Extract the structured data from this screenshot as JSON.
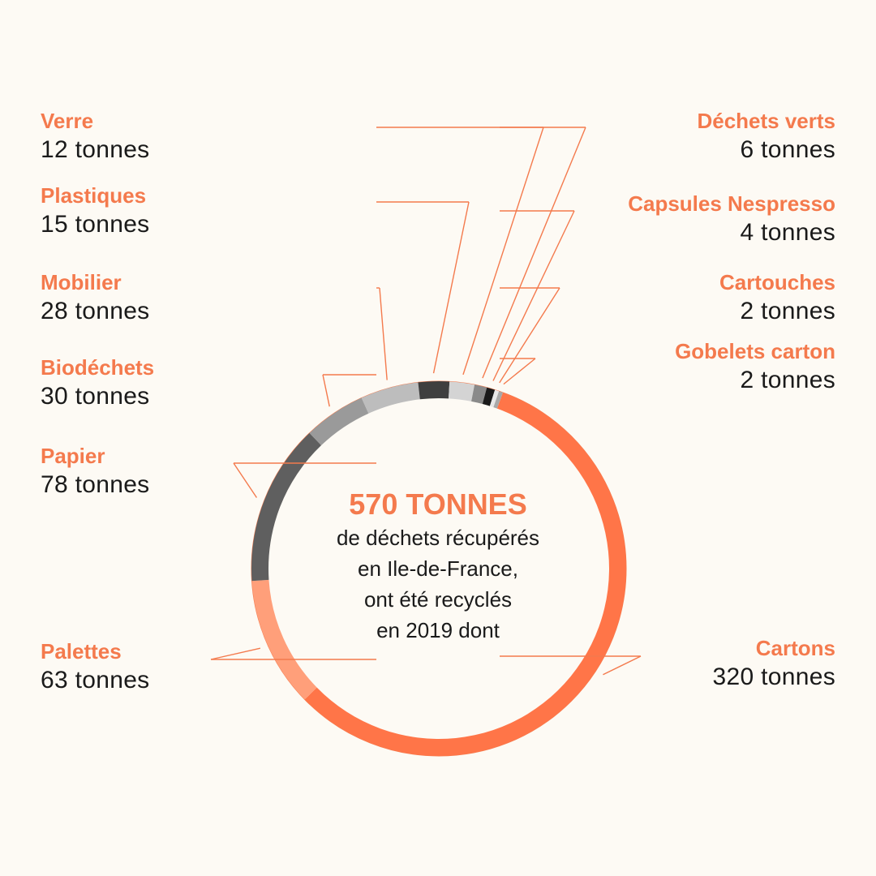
{
  "center": {
    "title": "570 TONNES",
    "lines": [
      "de déchets récupérés",
      "en Ile-de-France,",
      "ont été recyclés",
      "en 2019 dont"
    ]
  },
  "colors": {
    "accent": "#f47a4d",
    "background": "#fdfaf4",
    "text": "#1a1a1a"
  },
  "chart_data": {
    "type": "pie",
    "variant": "donut",
    "total_label": "570 TONNES",
    "unit": "tonnes",
    "slices": [
      {
        "name": "Cartons",
        "value": 320,
        "value_label": "320 tonnes",
        "color": "#ff7548",
        "side": "right"
      },
      {
        "name": "Palettes",
        "value": 63,
        "value_label": "63 tonnes",
        "color": "#ff9f7a",
        "side": "left"
      },
      {
        "name": "Papier",
        "value": 78,
        "value_label": "78 tonnes",
        "color": "#5f5f5f",
        "side": "left"
      },
      {
        "name": "Biodéchets",
        "value": 30,
        "value_label": "30 tonnes",
        "color": "#9a9a9a",
        "side": "left"
      },
      {
        "name": "Mobilier",
        "value": 28,
        "value_label": "28 tonnes",
        "color": "#bdbdbd",
        "side": "left"
      },
      {
        "name": "Plastiques",
        "value": 15,
        "value_label": "15 tonnes",
        "color": "#3f3f3f",
        "side": "left"
      },
      {
        "name": "Verre",
        "value": 12,
        "value_label": "12 tonnes",
        "color": "#d4d4d4",
        "side": "left"
      },
      {
        "name": "Déchets verts",
        "value": 6,
        "value_label": "6 tonnes",
        "color": "#8a8a8a",
        "side": "right"
      },
      {
        "name": "Capsules Nespresso",
        "value": 4,
        "value_label": "4 tonnes",
        "color": "#1a1a1a",
        "side": "right"
      },
      {
        "name": "Cartouches",
        "value": 2,
        "value_label": "2 tonnes",
        "color": "#e8e8e8",
        "side": "right"
      },
      {
        "name": "Gobelets carton",
        "value": 2,
        "value_label": "2 tonnes",
        "color": "#a8a8a8",
        "side": "right"
      }
    ]
  }
}
